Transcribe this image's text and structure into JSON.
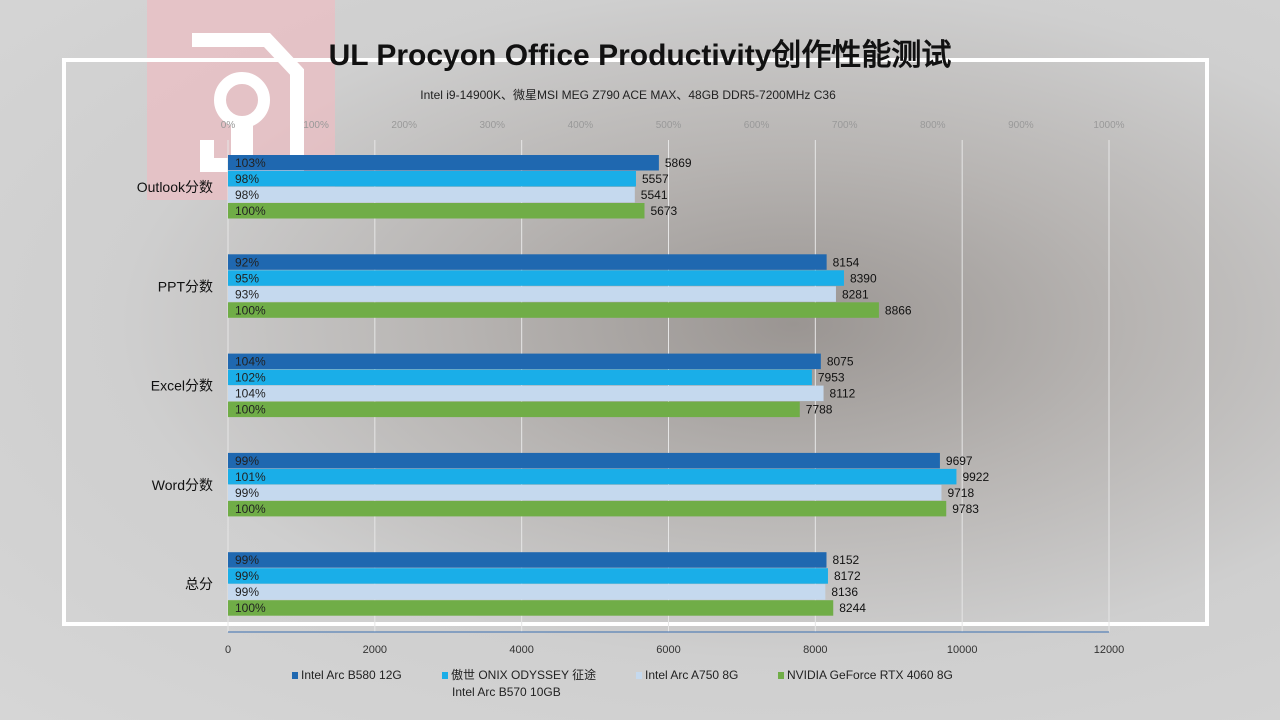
{
  "title": "UL Procyon Office Productivity创作性能测试",
  "subtitle": "Intel i9-14900K、微星MSI  MEG Z790 ACE MAX、48GB DDR5-7200MHz  C36",
  "chart_data": {
    "type": "bar",
    "orientation": "horizontal",
    "title": "UL Procyon Office Productivity创作性能测试",
    "categories": [
      "Outlook分数",
      "PPT分数",
      "Excel分数",
      "Word分数",
      "总分"
    ],
    "series": [
      {
        "name": "Intel Arc B580 12G",
        "color": "#1f68b0",
        "values": [
          5869,
          8154,
          8075,
          9697,
          8152
        ],
        "percent_labels": [
          "103%",
          "92%",
          "104%",
          "99%",
          "99%"
        ]
      },
      {
        "name": "傲世 ONIX  ODYSSEY 征途 Intel Arc B570 10GB",
        "name_line1": "傲世 ONIX  ODYSSEY 征途",
        "name_line2": "Intel Arc B570 10GB",
        "color": "#1aaee8",
        "values": [
          5557,
          8390,
          7953,
          9922,
          8172
        ],
        "percent_labels": [
          "98%",
          "95%",
          "102%",
          "101%",
          "99%"
        ]
      },
      {
        "name": "Intel Arc A750 8G",
        "color": "#c5d9ee",
        "values": [
          5541,
          8281,
          8112,
          9718,
          8136
        ],
        "percent_labels": [
          "98%",
          "93%",
          "104%",
          "99%",
          "99%"
        ]
      },
      {
        "name": "NVIDIA GeForce RTX 4060 8G",
        "color": "#70ad47",
        "values": [
          5673,
          8866,
          7788,
          9783,
          8244
        ],
        "percent_labels": [
          "100%",
          "100%",
          "100%",
          "100%",
          "100%"
        ]
      }
    ],
    "xlim": [
      0,
      12000
    ],
    "xticks": [
      "0",
      "2000",
      "4000",
      "6000",
      "8000",
      "10000",
      "12000"
    ],
    "secondary_xlim": [
      0,
      1000
    ],
    "secondary_xticks": [
      "0%",
      "100%",
      "200%",
      "300%",
      "400%",
      "500%",
      "600%",
      "700%",
      "800%",
      "900%",
      "1000%"
    ],
    "grid": true,
    "legend": "bottom"
  }
}
